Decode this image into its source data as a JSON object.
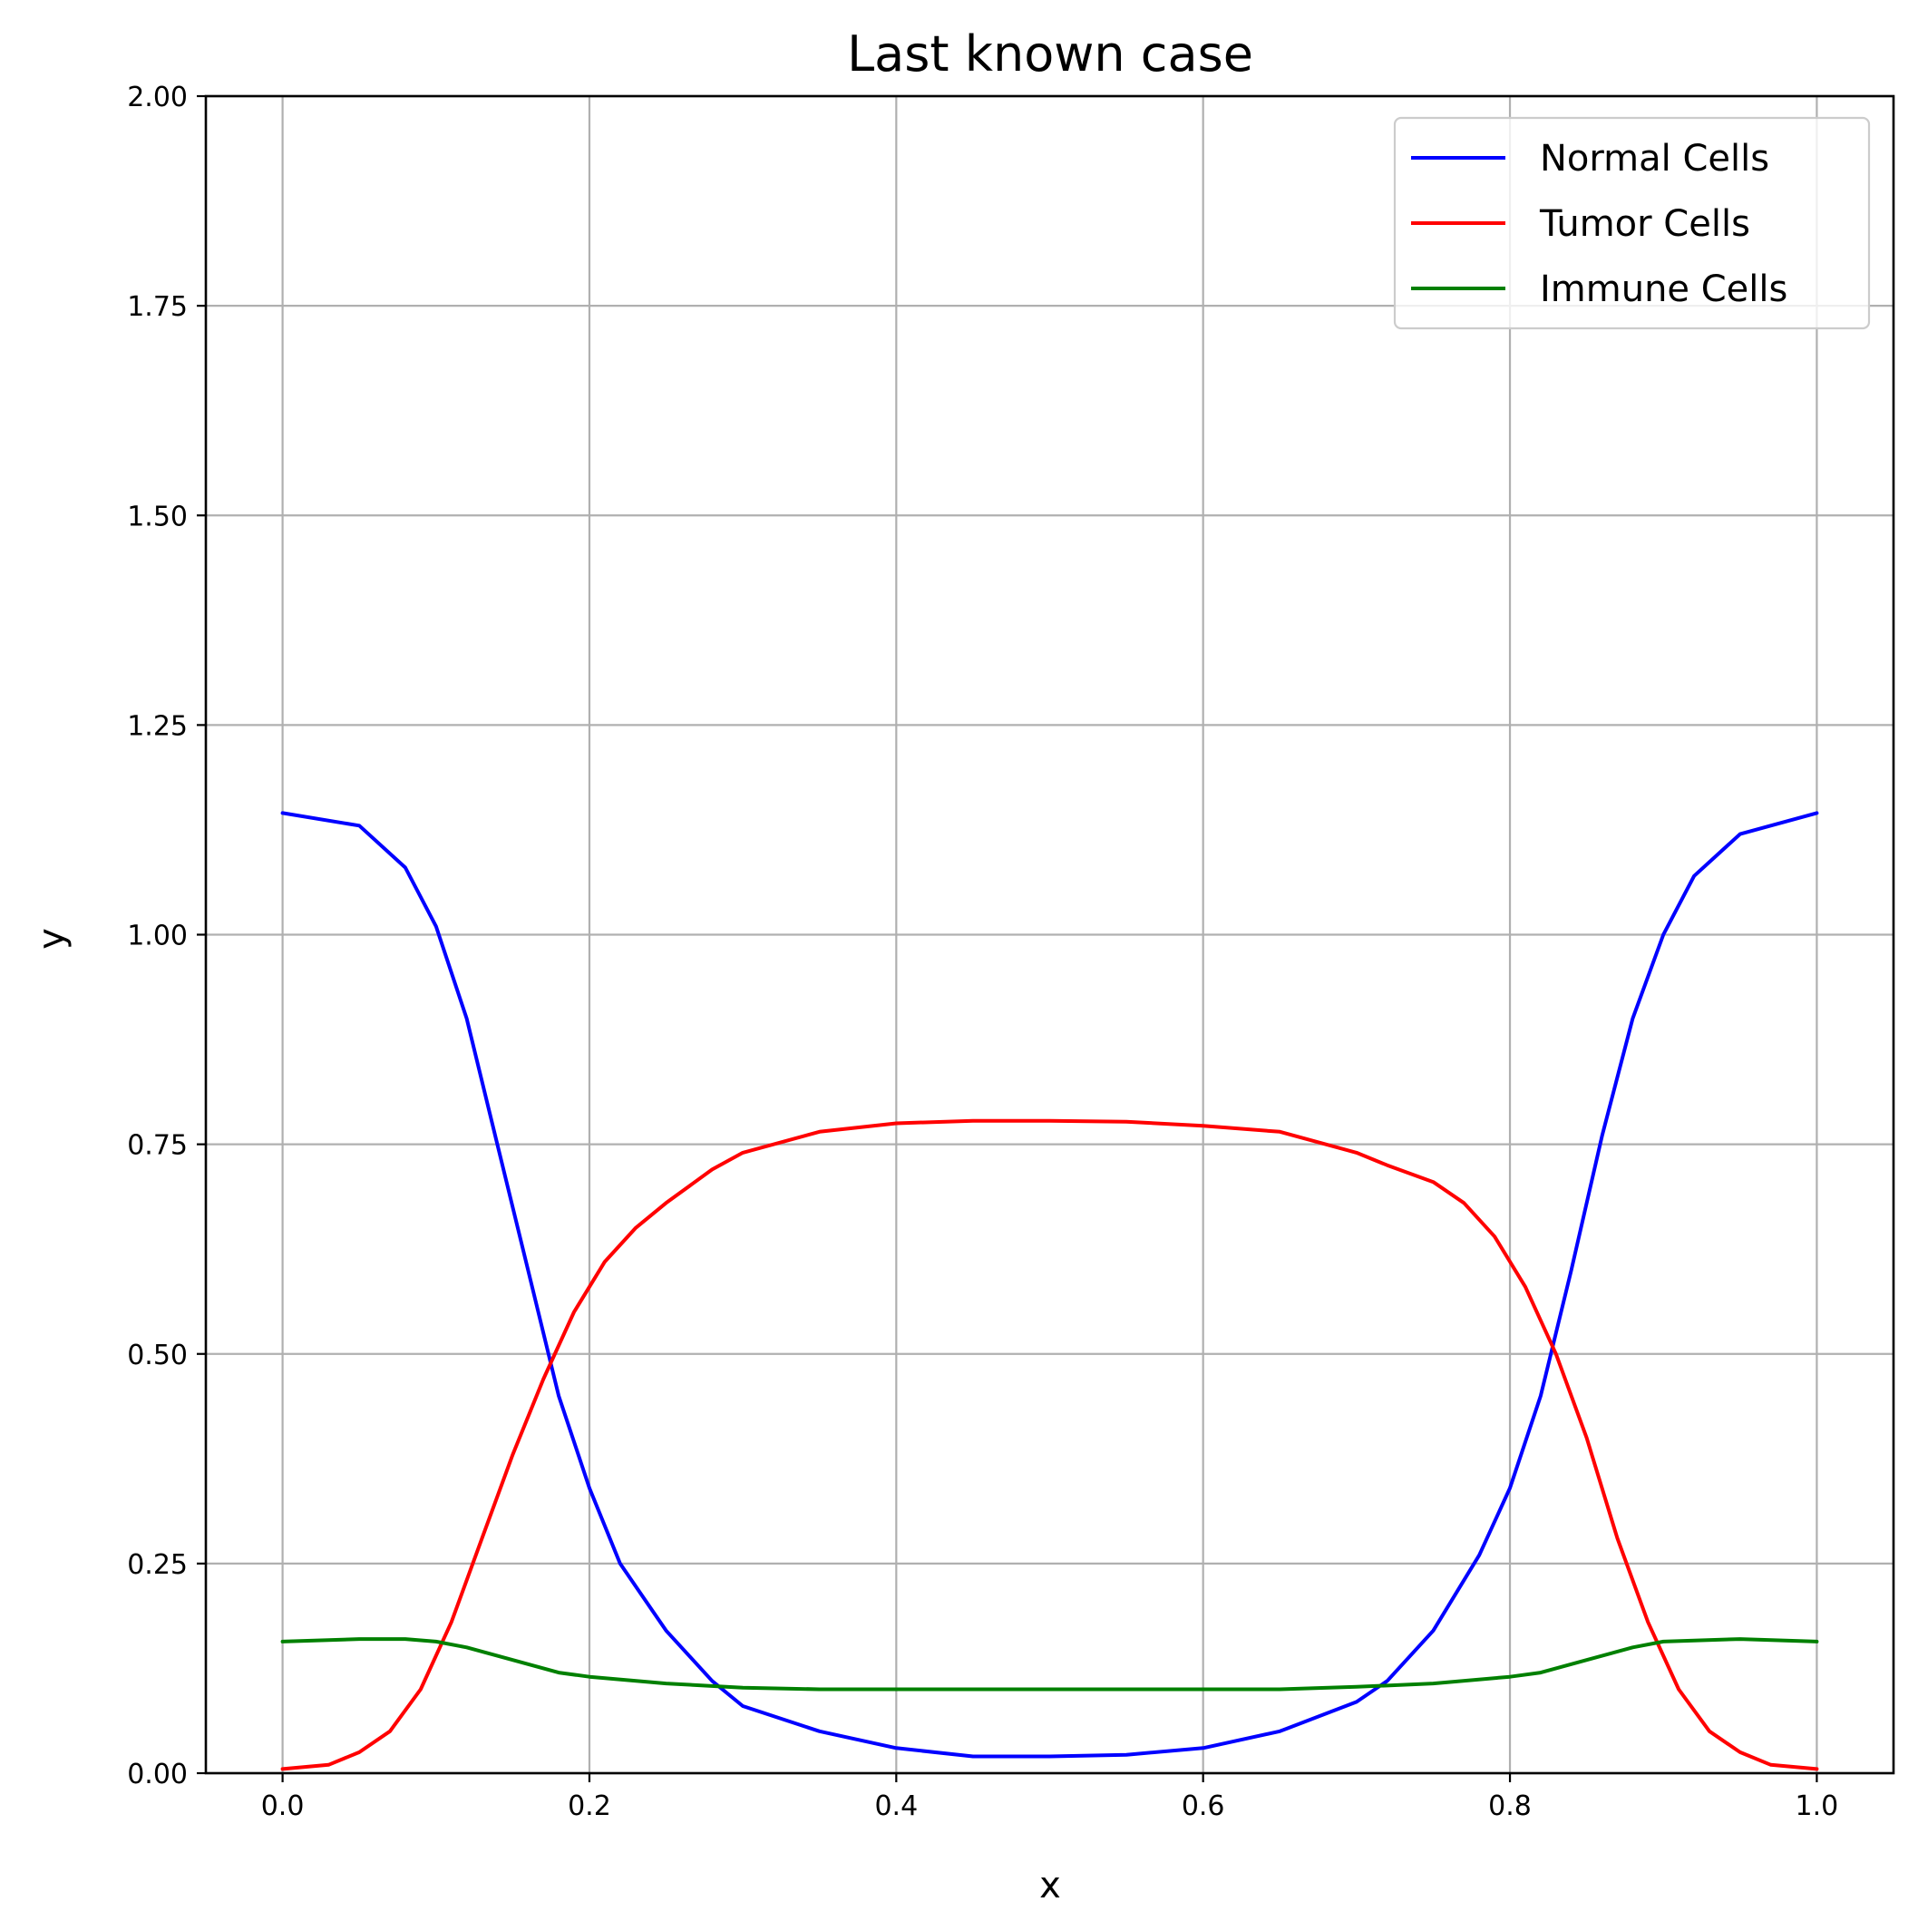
{
  "chart_data": {
    "type": "line",
    "title": "Last known case",
    "xlabel": "x",
    "ylabel": "y",
    "xlim": [
      -0.05,
      1.05
    ],
    "ylim": [
      0,
      2.0
    ],
    "xticks": [
      "0.0",
      "0.2",
      "0.4",
      "0.6",
      "0.8",
      "1.0"
    ],
    "yticks": [
      "0.00",
      "0.25",
      "0.50",
      "0.75",
      "1.00",
      "1.25",
      "1.50",
      "1.75",
      "2.00"
    ],
    "grid": true,
    "legend_position": "top-right",
    "series": [
      {
        "name": "Normal Cells",
        "color": "#0000ff",
        "x": [
          0.0,
          0.05,
          0.08,
          0.1,
          0.12,
          0.14,
          0.16,
          0.18,
          0.2,
          0.22,
          0.25,
          0.28,
          0.3,
          0.35,
          0.4,
          0.45,
          0.5,
          0.55,
          0.6,
          0.65,
          0.7,
          0.72,
          0.75,
          0.78,
          0.8,
          0.82,
          0.84,
          0.86,
          0.88,
          0.9,
          0.92,
          0.95,
          1.0
        ],
        "y": [
          1.145,
          1.13,
          1.08,
          1.01,
          0.9,
          0.75,
          0.6,
          0.45,
          0.34,
          0.25,
          0.17,
          0.11,
          0.08,
          0.05,
          0.03,
          0.02,
          0.02,
          0.022,
          0.03,
          0.05,
          0.085,
          0.11,
          0.17,
          0.26,
          0.34,
          0.45,
          0.6,
          0.76,
          0.9,
          1.0,
          1.07,
          1.12,
          1.145
        ]
      },
      {
        "name": "Tumor Cells",
        "color": "#ff0000",
        "x": [
          0.0,
          0.03,
          0.05,
          0.07,
          0.09,
          0.11,
          0.13,
          0.15,
          0.17,
          0.19,
          0.21,
          0.23,
          0.25,
          0.28,
          0.3,
          0.35,
          0.4,
          0.45,
          0.5,
          0.55,
          0.6,
          0.65,
          0.7,
          0.72,
          0.75,
          0.77,
          0.79,
          0.81,
          0.83,
          0.85,
          0.87,
          0.89,
          0.91,
          0.93,
          0.95,
          0.97,
          1.0
        ],
        "y": [
          0.005,
          0.01,
          0.025,
          0.05,
          0.1,
          0.18,
          0.28,
          0.38,
          0.47,
          0.55,
          0.61,
          0.65,
          0.68,
          0.72,
          0.74,
          0.765,
          0.775,
          0.778,
          0.778,
          0.777,
          0.772,
          0.765,
          0.74,
          0.725,
          0.705,
          0.68,
          0.64,
          0.58,
          0.5,
          0.4,
          0.28,
          0.18,
          0.1,
          0.05,
          0.025,
          0.01,
          0.005
        ]
      },
      {
        "name": "Immune Cells",
        "color": "#008000",
        "x": [
          0.0,
          0.05,
          0.08,
          0.1,
          0.12,
          0.15,
          0.18,
          0.2,
          0.25,
          0.3,
          0.35,
          0.4,
          0.45,
          0.5,
          0.55,
          0.6,
          0.65,
          0.7,
          0.75,
          0.8,
          0.82,
          0.85,
          0.88,
          0.9,
          0.95,
          1.0
        ],
        "y": [
          0.157,
          0.16,
          0.16,
          0.157,
          0.15,
          0.135,
          0.12,
          0.115,
          0.107,
          0.102,
          0.1,
          0.1,
          0.1,
          0.1,
          0.1,
          0.1,
          0.1,
          0.103,
          0.107,
          0.115,
          0.12,
          0.135,
          0.15,
          0.157,
          0.16,
          0.157
        ]
      }
    ]
  }
}
